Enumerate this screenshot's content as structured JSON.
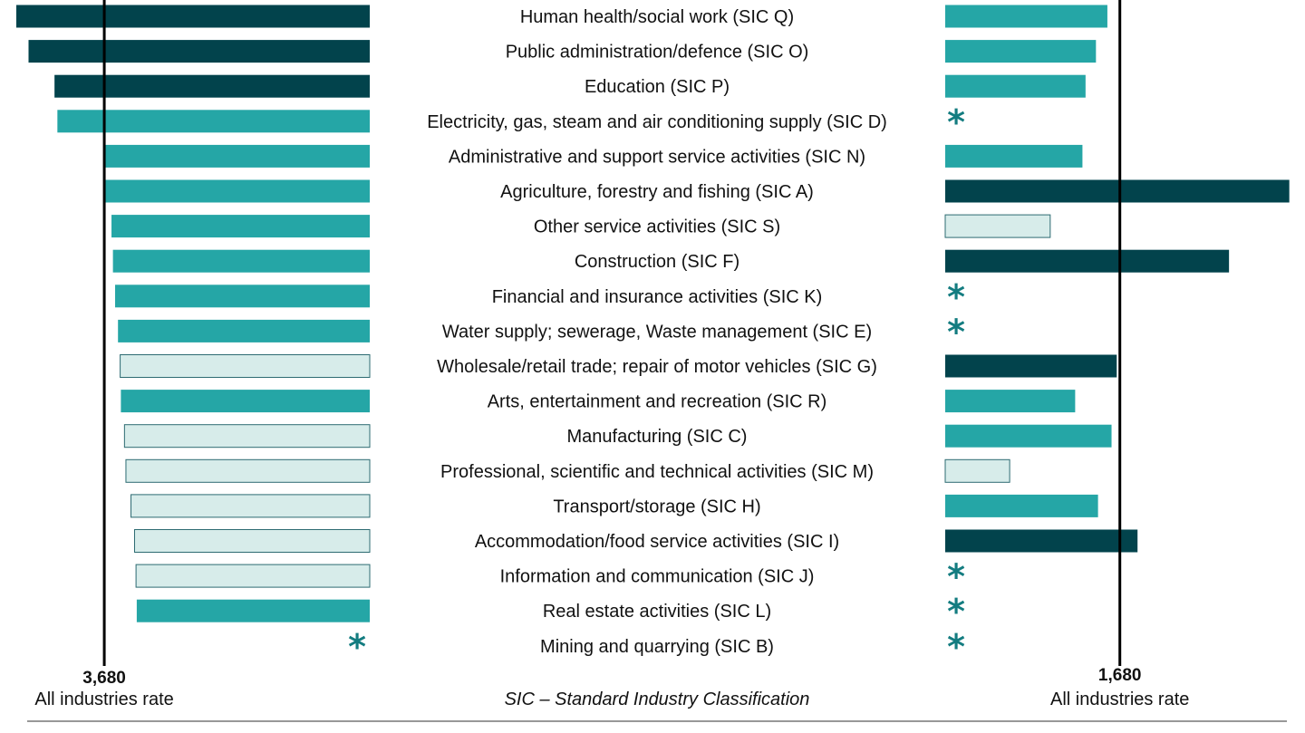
{
  "colors": {
    "dark": "#02434c",
    "mid": "#25a6a6",
    "light_fill": "#d7ecea",
    "light_stroke": "#2d6b72",
    "star": "#137c80",
    "axis": "#000000",
    "rule": "#777777"
  },
  "chart_data": {
    "type": "bar",
    "orientation": "horizontal",
    "layout": "back-to-back",
    "categories": [
      "Human health/social work (SIC Q)",
      "Public administration/defence (SIC O)",
      "Education (SIC P)",
      "Electricity, gas, steam and air conditioning supply (SIC D)",
      "Administrative and support service activities (SIC N)",
      "Agriculture, forestry and fishing (SIC A)",
      "Other service activities (SIC S)",
      "Construction (SIC F)",
      "Financial and insurance activities (SIC K)",
      "Water supply; sewerage, Waste management (SIC E)",
      "Wholesale/retail trade; repair of motor vehicles (SIC G)",
      "Arts, entertainment and recreation (SIC R)",
      "Manufacturing (SIC C)",
      "Professional, scientific and technical activities (SIC M)",
      "Transport/storage (SIC H)",
      "Accommodation/food service activities (SIC I)",
      "Information and communication (SIC J)",
      "Real estate activities (SIC L)",
      "Mining and quarrying (SIC B)"
    ],
    "series": [
      {
        "side": "left",
        "values": [
          4900,
          4730,
          4370,
          4330,
          3690,
          3680,
          3580,
          3560,
          3530,
          3490,
          3460,
          3450,
          3400,
          3380,
          3310,
          3260,
          3240,
          3230,
          null
        ],
        "shading": [
          "dark",
          "dark",
          "dark",
          "mid",
          "mid",
          "mid",
          "mid",
          "mid",
          "mid",
          "mid",
          "light",
          "mid",
          "light",
          "light",
          "light",
          "light",
          "light",
          "mid",
          "none"
        ],
        "reference": {
          "value": 3680,
          "value_label": "3,680",
          "label": "All industries rate"
        },
        "scale_max": 5000
      },
      {
        "side": "right",
        "values": [
          1560,
          1450,
          1350,
          null,
          1320,
          3310,
          1010,
          2730,
          null,
          null,
          1650,
          1250,
          1600,
          620,
          1470,
          1850,
          null,
          null,
          null
        ],
        "shading": [
          "mid",
          "mid",
          "mid",
          "none",
          "mid",
          "dark",
          "light",
          "dark",
          "none",
          "none",
          "dark",
          "mid",
          "mid",
          "light",
          "mid",
          "dark",
          "none",
          "none",
          "none"
        ],
        "reference": {
          "value": 1680,
          "value_label": "1,680",
          "label": "All industries rate"
        },
        "scale_max": 3400
      }
    ],
    "suppressed_marker": "*",
    "grid": false,
    "legend": "none",
    "footnote": "SIC – Standard Industry Classification"
  }
}
